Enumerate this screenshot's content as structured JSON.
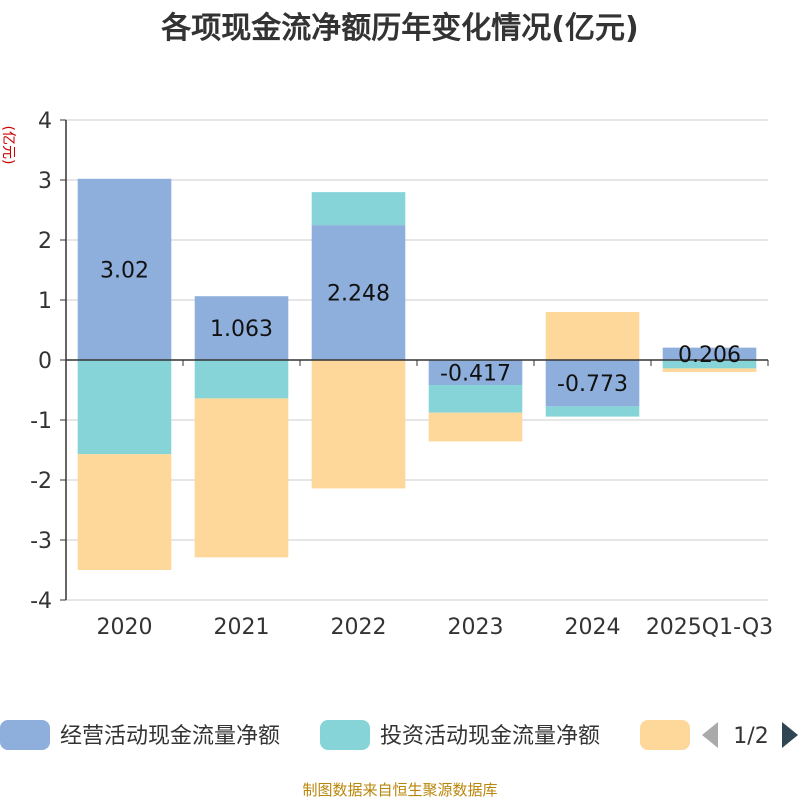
{
  "chart_data": {
    "type": "bar",
    "stacked": true,
    "title": "各项现金流净额历年变化情况(亿元)",
    "ylabel": "(亿元)",
    "xlabel": "",
    "ylim": [
      -4,
      4
    ],
    "yticks": [
      4,
      3,
      2,
      1,
      0,
      -1,
      -2,
      -3,
      -4
    ],
    "categories": [
      "2020",
      "2021",
      "2022",
      "2023",
      "2024",
      "2025Q1-Q3"
    ],
    "series": [
      {
        "name": "经营活动现金流量净额",
        "color": "#8eaedb",
        "values": [
          3.02,
          1.063,
          2.248,
          -0.417,
          -0.773,
          0.206
        ],
        "labels": [
          "3.02",
          "1.063",
          "2.248",
          "-0.417",
          "-0.773",
          "0.206"
        ]
      },
      {
        "name": "投资活动现金流量净额",
        "color": "#86d4d8",
        "values": [
          -1.57,
          -0.64,
          0.55,
          -0.46,
          -0.17,
          -0.14
        ]
      },
      {
        "name": "",
        "color": "#fdd89a",
        "values": [
          -1.93,
          -2.65,
          -2.14,
          -0.48,
          0.8,
          -0.06
        ]
      }
    ],
    "legend": {
      "position": "bottom",
      "page": "1/2"
    }
  },
  "source": "制图数据来自恒生聚源数据库"
}
